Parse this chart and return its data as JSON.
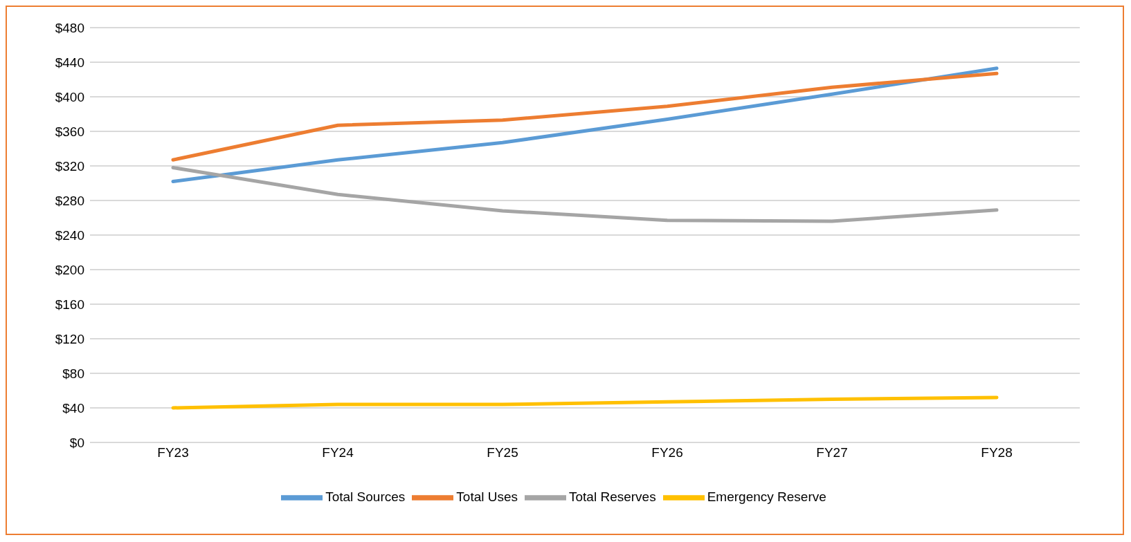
{
  "chart_data": {
    "type": "line",
    "categories": [
      "FY23",
      "FY24",
      "FY25",
      "FY26",
      "FY27",
      "FY28"
    ],
    "series": [
      {
        "name": "Total Sources",
        "color": "#5b9bd5",
        "values": [
          302,
          327,
          347,
          374,
          403,
          433
        ]
      },
      {
        "name": "Total Uses",
        "color": "#ed7d31",
        "values": [
          327,
          367,
          373,
          389,
          411,
          427
        ]
      },
      {
        "name": "Total Reserves",
        "color": "#a5a5a5",
        "values": [
          318,
          287,
          268,
          257,
          256,
          269
        ]
      },
      {
        "name": "Emergency Reserve",
        "color": "#ffc000",
        "values": [
          40,
          44,
          44,
          47,
          50,
          52
        ]
      }
    ],
    "ylim": [
      0,
      480
    ],
    "yticks": [
      {
        "value": 0,
        "label": "$0"
      },
      {
        "value": 40,
        "label": "$40"
      },
      {
        "value": 80,
        "label": "$80"
      },
      {
        "value": 120,
        "label": "$120"
      },
      {
        "value": 160,
        "label": "$160"
      },
      {
        "value": 200,
        "label": "$200"
      },
      {
        "value": 240,
        "label": "$240"
      },
      {
        "value": 280,
        "label": "$280"
      },
      {
        "value": 320,
        "label": "$320"
      },
      {
        "value": 360,
        "label": "$360"
      },
      {
        "value": 400,
        "label": "$400"
      },
      {
        "value": 440,
        "label": "$440"
      },
      {
        "value": 480,
        "label": "$480"
      }
    ],
    "grid": "y",
    "legend": "bottom",
    "marker": "none",
    "line_style": "solid"
  }
}
